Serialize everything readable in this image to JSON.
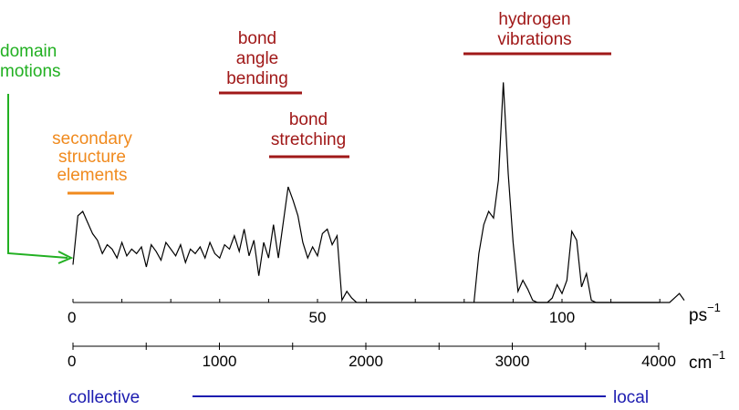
{
  "colors": {
    "maroon": "#a01818",
    "orange": "#f08a1e",
    "green": "#22b022",
    "blue": "#1c1cb0",
    "black": "#000000"
  },
  "annotations": {
    "domain_motions": [
      "domain",
      "motions"
    ],
    "secondary_structure": [
      "secondary",
      "structure",
      "elements"
    ],
    "bond_angle_bending": [
      "bond",
      "angle",
      "bending"
    ],
    "bond_stretching": [
      "bond",
      "stretching"
    ],
    "hydrogen_vibrations": [
      "hydrogen",
      "vibrations"
    ]
  },
  "axes": {
    "ps": {
      "unit": "ps",
      "unit_exp": "−1",
      "ticks": [
        {
          "value": 0,
          "label": "0"
        },
        {
          "value": 50,
          "label": "50"
        },
        {
          "value": 100,
          "label": "100"
        }
      ],
      "range": [
        0,
        134
      ]
    },
    "cm": {
      "unit": "cm",
      "unit_exp": "−1",
      "ticks": [
        {
          "value": 0,
          "label": "0"
        },
        {
          "value": 1000,
          "label": "1000"
        },
        {
          "value": 2000,
          "label": "2000"
        },
        {
          "value": 3000,
          "label": "3000"
        },
        {
          "value": 4000,
          "label": "4000"
        }
      ],
      "range": [
        0,
        4000
      ]
    }
  },
  "scale_bar": {
    "left": "collective",
    "right": "local"
  },
  "chart_data": {
    "type": "line",
    "x_units": "ps^-1",
    "ylim": [
      0,
      1
    ],
    "x": [
      0,
      1,
      2,
      3,
      4,
      5,
      6,
      7,
      8,
      9,
      10,
      11,
      12,
      13,
      14,
      15,
      16,
      17,
      18,
      19,
      20,
      21,
      22,
      23,
      24,
      25,
      26,
      27,
      28,
      29,
      30,
      31,
      32,
      33,
      34,
      35,
      36,
      37,
      38,
      39,
      40,
      41,
      42,
      43,
      44,
      45,
      46,
      47,
      48,
      49,
      50,
      51,
      52,
      53,
      54,
      55,
      56,
      57,
      58,
      59,
      60,
      61,
      62,
      63,
      64,
      65,
      66,
      67,
      68,
      69,
      70,
      71,
      72,
      73,
      74,
      75,
      76,
      77,
      78,
      79,
      80,
      81,
      82,
      83,
      84,
      85,
      86,
      87,
      88,
      89,
      90,
      91,
      92,
      93,
      94,
      95,
      96,
      97,
      98,
      99,
      100,
      101,
      102,
      103,
      104,
      105,
      106,
      107,
      108,
      109,
      110,
      111,
      112,
      113,
      114,
      115,
      116,
      117,
      118,
      119,
      120
    ],
    "values": [
      0.17,
      0.39,
      0.41,
      0.36,
      0.31,
      0.28,
      0.22,
      0.26,
      0.24,
      0.2,
      0.27,
      0.21,
      0.24,
      0.22,
      0.25,
      0.16,
      0.26,
      0.23,
      0.19,
      0.27,
      0.24,
      0.21,
      0.26,
      0.18,
      0.24,
      0.22,
      0.25,
      0.2,
      0.27,
      0.22,
      0.2,
      0.26,
      0.24,
      0.3,
      0.23,
      0.33,
      0.21,
      0.28,
      0.12,
      0.27,
      0.2,
      0.35,
      0.2,
      0.36,
      0.52,
      0.46,
      0.39,
      0.27,
      0.2,
      0.25,
      0.21,
      0.31,
      0.33,
      0.26,
      0.3,
      0.01,
      0.05,
      0.02,
      0.0,
      0.0,
      0.0,
      0.0,
      0.0,
      0.0,
      0.0,
      0.0,
      0.0,
      0.0,
      0.0,
      0.0,
      0.0,
      0.0,
      0.0,
      0.0,
      0.0,
      0.0,
      0.0,
      0.0,
      0.0,
      0.0,
      0.0,
      0.0,
      0.0,
      0.0,
      0.0,
      0.0,
      0.0,
      0.0,
      0.0,
      0.0,
      0.0,
      0.0,
      0.0,
      0.0,
      0.0,
      0.0,
      0.0,
      0.0,
      0.0,
      0.0,
      0.0,
      0.0,
      0.0,
      0.0,
      0.0,
      0.0,
      0.0,
      0.0,
      0.0,
      0.0,
      0.0,
      0.0,
      0.0,
      0.0,
      0.0,
      0.0,
      0.0,
      0.0,
      0.0,
      0.0,
      0.0
    ],
    "x_b": [
      82,
      83,
      84,
      85,
      86,
      87,
      88,
      89,
      90,
      91,
      92,
      93,
      94,
      95,
      96,
      97,
      98,
      99,
      100,
      101,
      102,
      103,
      104,
      105,
      106,
      107,
      108,
      109,
      110,
      111,
      112,
      113,
      114,
      115,
      116,
      117,
      118,
      119,
      120,
      121,
      122,
      123,
      124,
      125
    ],
    "values_b": [
      0.0,
      0.22,
      0.35,
      0.41,
      0.38,
      0.55,
      0.99,
      0.58,
      0.27,
      0.05,
      0.1,
      0.06,
      0.01,
      0.0,
      0.0,
      0.0,
      0.02,
      0.08,
      0.04,
      0.1,
      0.32,
      0.28,
      0.07,
      0.13,
      0.01,
      0.0,
      0.0,
      0.0,
      0.0,
      0.0,
      0.0,
      0.0,
      0.0,
      0.0,
      0.0,
      0.0,
      0.0,
      0.0,
      0.0,
      0.0,
      0.0,
      0.02,
      0.04,
      0.01
    ]
  }
}
